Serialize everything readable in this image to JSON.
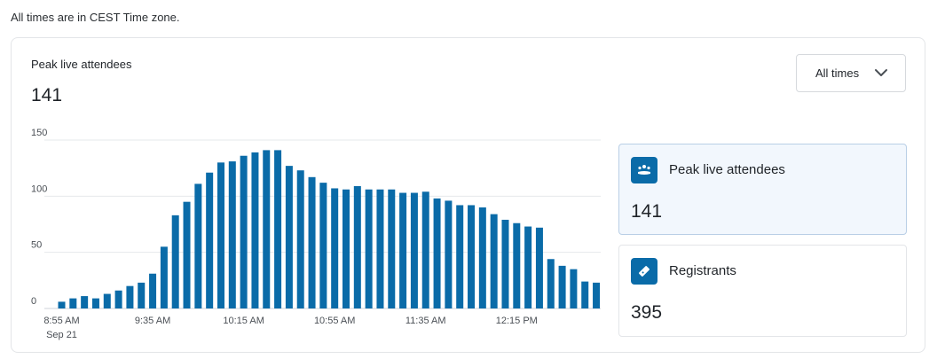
{
  "timezone_note": "All times are in CEST Time zone.",
  "header": {
    "title": "Peak live attendees",
    "value": "141"
  },
  "filter": {
    "selected": "All times"
  },
  "metrics": [
    {
      "label": "Peak live attendees",
      "value": "141",
      "icon": "attendees-icon",
      "active": true
    },
    {
      "label": "Registrants",
      "value": "395",
      "icon": "ticket-icon",
      "active": false
    }
  ],
  "colors": {
    "bar": "#0a6ba8",
    "grid": "#e6e8eb",
    "accent_bg": "#f2f7fd"
  },
  "chart_data": {
    "type": "bar",
    "ylim": [
      0,
      150
    ],
    "yticks": [
      0,
      50,
      100,
      150
    ],
    "xtick_labels": [
      "8:55 AM",
      "9:35 AM",
      "10:15 AM",
      "10:55 AM",
      "11:35 AM",
      "12:15 PM"
    ],
    "xtick_sublabel": "Sep 21",
    "xtick_positions": [
      0,
      8,
      16,
      24,
      32,
      40
    ],
    "grid": true,
    "values": [
      6,
      9,
      11,
      9,
      13,
      16,
      20,
      23,
      31,
      55,
      83,
      95,
      111,
      121,
      130,
      131,
      136,
      139,
      141,
      141,
      127,
      123,
      117,
      112,
      107,
      106,
      109,
      106,
      106,
      106,
      103,
      103,
      104,
      98,
      96,
      92,
      92,
      90,
      84,
      79,
      76,
      73,
      72,
      44,
      38,
      35,
      24,
      23
    ]
  }
}
